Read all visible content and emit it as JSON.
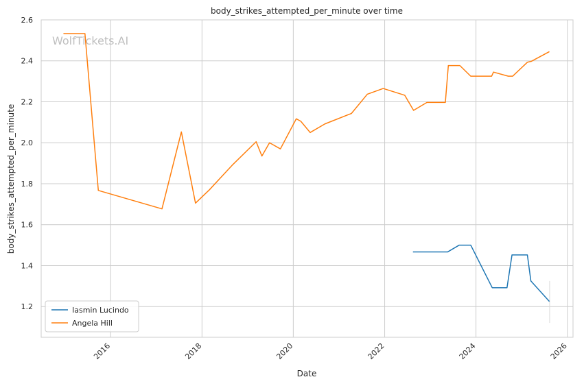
{
  "chart_data": {
    "type": "line",
    "title": "body_strikes_attempted_per_minute over time",
    "xlabel": "Date",
    "ylabel": "body_strikes_attempted_per_minute",
    "xlim": [
      "2014-06-25",
      "2026-02-15"
    ],
    "ylim": [
      1.05,
      2.6
    ],
    "x_ticks": [
      "2016",
      "2018",
      "2020",
      "2022",
      "2024",
      "2026"
    ],
    "y_ticks": [
      "1.2",
      "1.4",
      "1.6",
      "1.8",
      "2.0",
      "2.2",
      "2.4",
      "2.6"
    ],
    "grid": true,
    "legend_position": "lower-left",
    "watermark": "WolfTickets.AI",
    "series": [
      {
        "name": "Iasmin Lucindo",
        "color": "#1f77b4",
        "points": [
          [
            "2022-08-15",
            1.467
          ],
          [
            "2023-05-20",
            1.467
          ],
          [
            "2023-08-20",
            1.5
          ],
          [
            "2023-11-20",
            1.5
          ],
          [
            "2024-05-10",
            1.292
          ],
          [
            "2024-09-05",
            1.292
          ],
          [
            "2024-10-15",
            1.452
          ],
          [
            "2025-02-15",
            1.452
          ],
          [
            "2025-03-15",
            1.325
          ],
          [
            "2025-08-10",
            1.225
          ]
        ]
      },
      {
        "name": "Angela Hill",
        "color": "#ff7f0e",
        "points": [
          [
            "2014-12-20",
            2.533
          ],
          [
            "2015-06-10",
            2.533
          ],
          [
            "2015-09-25",
            1.767
          ],
          [
            "2017-02-15",
            1.677
          ],
          [
            "2017-07-20",
            2.053
          ],
          [
            "2017-11-10",
            1.705
          ],
          [
            "2018-03-01",
            1.77
          ],
          [
            "2018-08-30",
            1.89
          ],
          [
            "2019-03-10",
            2.005
          ],
          [
            "2019-04-25",
            1.935
          ],
          [
            "2019-06-25",
            2.0
          ],
          [
            "2019-09-20",
            1.97
          ],
          [
            "2020-01-25",
            2.117
          ],
          [
            "2020-03-01",
            2.105
          ],
          [
            "2020-05-15",
            2.05
          ],
          [
            "2020-09-10",
            2.092
          ],
          [
            "2021-04-10",
            2.143
          ],
          [
            "2021-08-15",
            2.237
          ],
          [
            "2021-12-20",
            2.265
          ],
          [
            "2022-06-10",
            2.232
          ],
          [
            "2022-08-20",
            2.158
          ],
          [
            "2022-12-05",
            2.197
          ],
          [
            "2023-05-01",
            2.197
          ],
          [
            "2023-05-25",
            2.377
          ],
          [
            "2023-08-25",
            2.377
          ],
          [
            "2023-11-20",
            2.325
          ],
          [
            "2024-05-05",
            2.325
          ],
          [
            "2024-05-20",
            2.345
          ],
          [
            "2024-09-15",
            2.325
          ],
          [
            "2024-10-20",
            2.325
          ],
          [
            "2025-02-15",
            2.393
          ],
          [
            "2025-03-20",
            2.398
          ],
          [
            "2025-08-10",
            2.445
          ]
        ]
      }
    ],
    "annotations": [
      {
        "type": "vertical-segment",
        "x": "2025-08-12",
        "y_range": [
          1.12,
          1.325
        ],
        "color": "#d9d9d9"
      }
    ]
  }
}
